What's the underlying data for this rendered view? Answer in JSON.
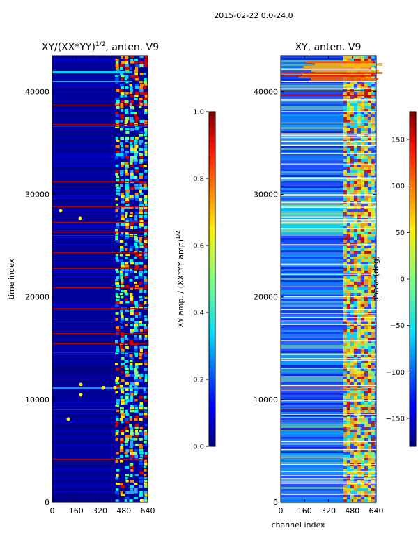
{
  "figure": {
    "suptitle": "2015-02-22 0.0-24.0"
  },
  "chart_data": [
    {
      "type": "heatmap",
      "title": "XY/(XX*YY)^1/2, anten. V9",
      "title_main": "XY/(XX*YY)",
      "title_exp": "1/2",
      "title_tail": ", anten. V9",
      "xlabel": "",
      "ylabel": "time index",
      "xlim": [
        0,
        640
      ],
      "ylim": [
        0,
        43500
      ],
      "xticks": [
        0,
        160,
        320,
        480,
        640
      ],
      "yticks": [
        0,
        10000,
        20000,
        30000,
        40000
      ],
      "colorbar": {
        "label": "XY amp. / (XX*YY amp)^1/2",
        "label_main": "XY amp. / (XX*YY amp)",
        "label_exp": "1/2",
        "range": [
          0.0,
          1.0
        ],
        "ticks": [
          "0.0",
          "0.2",
          "0.4",
          "0.6",
          "0.8",
          "1.0"
        ],
        "colormap": "jet"
      }
    },
    {
      "type": "heatmap",
      "title": "XY, anten. V9",
      "xlabel": "channel index",
      "ylabel": "",
      "xlim": [
        0,
        640
      ],
      "ylim": [
        0,
        43500
      ],
      "xticks": [
        0,
        160,
        320,
        480,
        640
      ],
      "yticks": [
        0,
        10000,
        20000,
        30000,
        40000
      ],
      "colorbar": {
        "label": "phase (deg)",
        "range": [
          -180,
          180
        ],
        "ticks": [
          "-150",
          "-100",
          "-50",
          "0",
          "50",
          "100",
          "150"
        ],
        "colormap": "jet"
      }
    }
  ],
  "colors": {
    "background_low": "#00008f",
    "low": "#0000c8",
    "mid": "#2ea8ff",
    "high": "#ffd700",
    "max": "#800000"
  }
}
